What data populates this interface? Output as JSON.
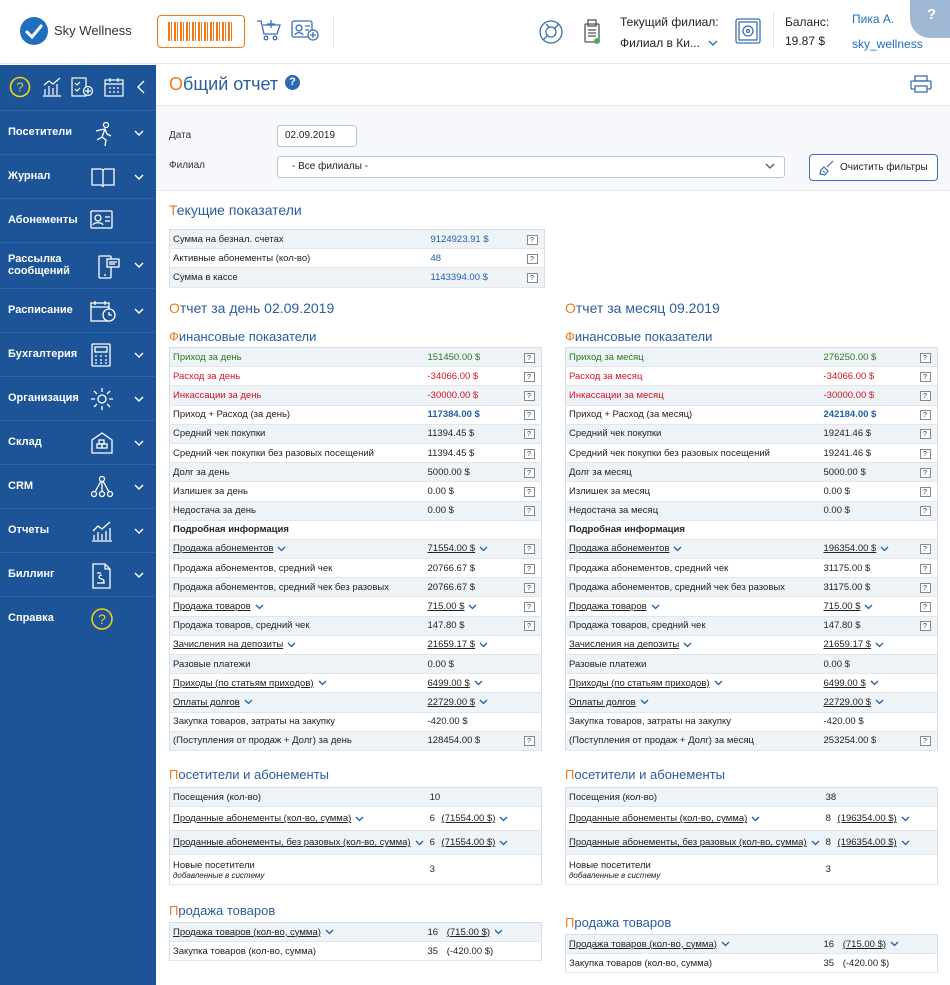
{
  "app": {
    "brand": "Sky Wellness",
    "branch_label": "Текущий филиал:",
    "branch_value": "Филиал в Ки...",
    "balance_label": "Баланс:",
    "balance_value": "19.87 $",
    "user_name": "Пика А.",
    "user_login": "sky_wellness",
    "help": "?"
  },
  "sidebar": {
    "items": [
      {
        "label": "Посетители",
        "icon": "runner-icon"
      },
      {
        "label": "Журнал",
        "icon": "book-icon"
      },
      {
        "label": "Абонементы",
        "icon": "id-card-icon"
      },
      {
        "label": "Рассылка сообщений",
        "icon": "phone-message-icon"
      },
      {
        "label": "Расписание",
        "icon": "calendar-clock-icon"
      },
      {
        "label": "Бухгалтерия",
        "icon": "calculator-icon"
      },
      {
        "label": "Организация",
        "icon": "gear-icon"
      },
      {
        "label": "Склад",
        "icon": "warehouse-icon"
      },
      {
        "label": "CRM",
        "icon": "network-icon"
      },
      {
        "label": "Отчеты",
        "icon": "chart-icon"
      },
      {
        "label": "Биллинг",
        "icon": "invoice-icon"
      },
      {
        "label": "Справка",
        "icon": "help-icon"
      }
    ]
  },
  "page": {
    "title_first": "О",
    "title_rest": "бщий отчет"
  },
  "filters": {
    "date_label": "Дата",
    "date_value": "02.09.2019",
    "branch_label": "Филиал",
    "branch_value": "- Все филиалы -",
    "clear_button": "Очистить фильтры"
  },
  "current": {
    "title_first": "Т",
    "title_rest": "екущие показатели",
    "rows": [
      {
        "label": "Сумма на безнал. счетах",
        "value": "9124923.91 $"
      },
      {
        "label": "Активные абонементы (кол-во)",
        "value": "48"
      },
      {
        "label": "Сумма в кассе",
        "value": "1143394.00 $"
      }
    ]
  },
  "day": {
    "title_first": "О",
    "title_rest": "тчет за день 02.09.2019",
    "fin_first": "Ф",
    "fin_rest": "инансовые показатели",
    "rows": [
      {
        "label": "Приход за день",
        "value": "151450.00 $",
        "lc": "green",
        "vc": "green",
        "q": true
      },
      {
        "label": "Расход за день",
        "value": "-34066.00 $",
        "lc": "red",
        "vc": "red",
        "q": true
      },
      {
        "label": "Инкассации за день",
        "value": "-30000.00 $",
        "lc": "red",
        "vc": "red",
        "q": true
      },
      {
        "label": "Приход + Расход (за день)",
        "value": "117384.00 $",
        "vc": "blue bold",
        "q": true
      },
      {
        "label": "Средний чек покупки",
        "value": "11394.45 $",
        "q": true
      },
      {
        "label": "Средний чек покупки без разовых посещений",
        "value": "11394.45 $",
        "q": true
      },
      {
        "label": "Долг за день",
        "value": "5000.00 $",
        "q": true
      },
      {
        "label": "Излишек за день",
        "value": "0.00 $",
        "q": true
      },
      {
        "label": "Недостача за день",
        "value": "0.00 $",
        "q": true
      },
      {
        "label": "Подробная информация",
        "value": "",
        "lc": "bold"
      },
      {
        "label": "Продажа абонементов",
        "value": "71554.00 $",
        "link": true,
        "q": true
      },
      {
        "label": "Продажа абонементов, средний чек",
        "value": "20766.67 $",
        "q": true
      },
      {
        "label": "Продажа абонементов, средний чек без разовых",
        "value": "20766.67 $",
        "q": true
      },
      {
        "label": "Продажа товаров",
        "value": "715.00 $",
        "link": true,
        "q": true
      },
      {
        "label": "Продажа товаров, средний чек",
        "value": "147.80 $",
        "q": true
      },
      {
        "label": "Зачисления на депозиты",
        "value": "21659.17 $",
        "link": true
      },
      {
        "label": "Разовые платежи",
        "value": "0.00 $"
      },
      {
        "label": "Приходы (по статьям приходов)",
        "value": "6499.00 $",
        "link": true
      },
      {
        "label": "Оплаты долгов",
        "value": "22729.00 $",
        "link": true
      },
      {
        "label": "Закупка товаров, затраты на закупку",
        "value": "-420.00 $"
      },
      {
        "label": "(Поступления от продаж + Долг) за день",
        "value": "128454.00 $",
        "q": true
      }
    ],
    "visitors_first": "П",
    "visitors_rest": "осетители и абонементы",
    "visitors": [
      {
        "label": "Посещения (кол-во)",
        "count": "10",
        "sum": ""
      },
      {
        "label": "Проданные абонементы (кол-во, сумма)",
        "count": "6",
        "sum": "(71554.00 $)",
        "link": true
      },
      {
        "label": "Проданные абонементы, без разовых (кол-во, сумма)",
        "count": "6",
        "sum": "(71554.00 $)",
        "link": true
      },
      {
        "label": "Новые посетители",
        "note": "добавленные в систему",
        "count": "3",
        "sum": ""
      }
    ],
    "goods_first": "П",
    "goods_rest": "родажа товаров",
    "goods": [
      {
        "label": "Продажа товаров (кол-во, сумма)",
        "count": "16",
        "sum": "(715.00 $)",
        "link": true
      },
      {
        "label": "Закупка товаров (кол-во, сумма)",
        "count": "35",
        "sum": "(-420.00 $)"
      }
    ]
  },
  "month": {
    "title_first": "О",
    "title_rest": "тчет за месяц 09.2019",
    "fin_first": "Ф",
    "fin_rest": "инансовые показатели",
    "rows": [
      {
        "label": "Приход за месяц",
        "value": "276250.00 $",
        "lc": "green",
        "vc": "green",
        "q": true
      },
      {
        "label": "Расход за месяц",
        "value": "-34066.00 $",
        "lc": "red",
        "vc": "red",
        "q": true
      },
      {
        "label": "Инкассации за месяц",
        "value": "-30000.00 $",
        "lc": "red",
        "vc": "red",
        "q": true
      },
      {
        "label": "Приход + Расход (за месяц)",
        "value": "242184.00 $",
        "vc": "blue bold",
        "q": true
      },
      {
        "label": "Средний чек покупки",
        "value": "19241.46 $",
        "q": true
      },
      {
        "label": "Средний чек покупки без разовых посещений",
        "value": "19241.46 $",
        "q": true
      },
      {
        "label": "Долг за месяц",
        "value": "5000.00 $",
        "q": true
      },
      {
        "label": "Излишек за месяц",
        "value": "0.00 $",
        "q": true
      },
      {
        "label": "Недостача за месяц",
        "value": "0.00 $",
        "q": true
      },
      {
        "label": "Подробная информация",
        "value": "",
        "lc": "bold"
      },
      {
        "label": "Продажа абонементов",
        "value": "196354.00 $",
        "link": true,
        "q": true
      },
      {
        "label": "Продажа абонементов, средний чек",
        "value": "31175.00 $",
        "q": true
      },
      {
        "label": "Продажа абонементов, средний чек без разовых",
        "value": "31175.00 $",
        "q": true
      },
      {
        "label": "Продажа товаров",
        "value": "715.00 $",
        "link": true,
        "q": true
      },
      {
        "label": "Продажа товаров, средний чек",
        "value": "147.80 $",
        "q": true
      },
      {
        "label": "Зачисления на депозиты",
        "value": "21659.17 $",
        "link": true
      },
      {
        "label": "Разовые платежи",
        "value": "0.00 $"
      },
      {
        "label": "Приходы (по статьям приходов)",
        "value": "6499.00 $",
        "link": true
      },
      {
        "label": "Оплаты долгов",
        "value": "22729.00 $",
        "link": true
      },
      {
        "label": "Закупка товаров, затраты на закупку",
        "value": "-420.00 $"
      },
      {
        "label": "(Поступления от продаж + Долг) за месяц",
        "value": "253254.00 $",
        "q": true
      }
    ],
    "visitors_first": "П",
    "visitors_rest": "осетители и абонементы",
    "visitors": [
      {
        "label": "Посещения (кол-во)",
        "count": "38",
        "sum": ""
      },
      {
        "label": "Проданные абонементы (кол-во, сумма)",
        "count": "8",
        "sum": "(196354.00 $)",
        "link": true
      },
      {
        "label": "Проданные абонементы, без разовых (кол-во, сумма)",
        "count": "8",
        "sum": "(196354.00 $)",
        "link": true
      },
      {
        "label": "Новые посетители",
        "note": "добавленные в систему",
        "count": "3",
        "sum": ""
      }
    ],
    "goods_first": "П",
    "goods_rest": "родажа товаров",
    "goods": [
      {
        "label": "Продажа товаров (кол-во, сумма)",
        "count": "16",
        "sum": "(715.00 $)",
        "link": true
      },
      {
        "label": "Закупка товаров (кол-во, сумма)",
        "count": "35",
        "sum": "(-420.00 $)"
      }
    ]
  }
}
